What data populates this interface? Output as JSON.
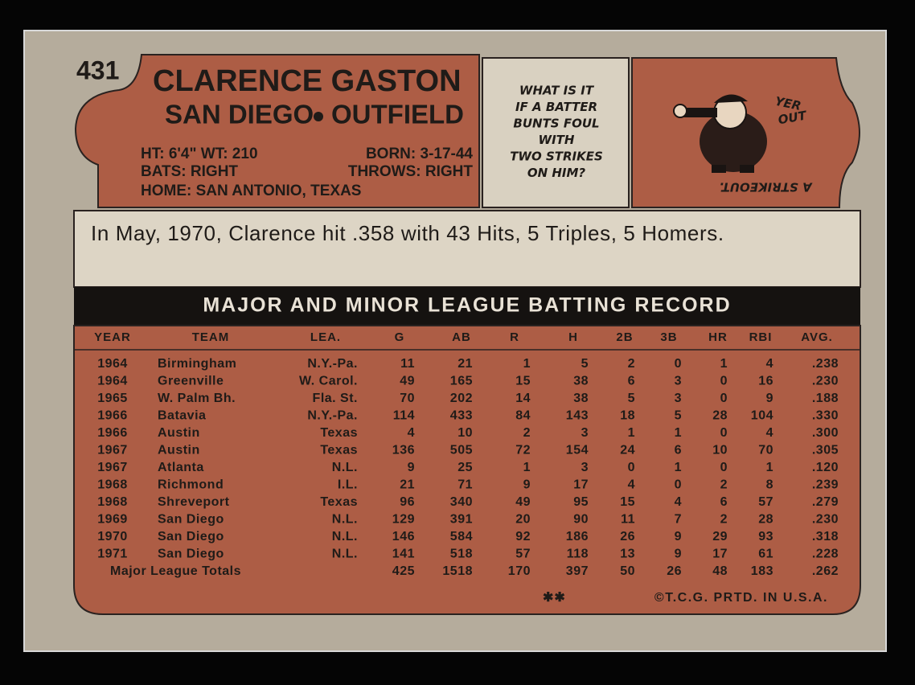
{
  "card_number": "431",
  "player": {
    "name": "CLARENCE GASTON",
    "team": "SAN DIEGO",
    "position": "OUTFIELD",
    "bio": {
      "height_weight": "HT: 6'4\" WT: 210",
      "born": "BORN: 3-17-44",
      "bats": "BATS: RIGHT",
      "throws": "THROWS: RIGHT",
      "home": "HOME: SAN ANTONIO, TEXAS"
    }
  },
  "quiz": {
    "question_lines": [
      "WHAT IS IT",
      "IF A BATTER",
      "BUNTS FOUL",
      "WITH",
      "TWO STRIKES",
      "ON HIM?"
    ],
    "cartoon_lines": [
      "YER",
      "OUT"
    ],
    "answer": "A STRIKEOUT."
  },
  "blurb": "In May, 1970, Clarence hit .358 with 43 Hits, 5 Triples, 5 Homers.",
  "table": {
    "title": "MAJOR AND MINOR LEAGUE BATTING RECORD",
    "headers": [
      "YEAR",
      "TEAM",
      "LEA.",
      "G",
      "AB",
      "R",
      "H",
      "2B",
      "3B",
      "HR",
      "RBI",
      "AVG."
    ],
    "rows": [
      [
        "1964",
        "Birmingham",
        "N.Y.-Pa.",
        "11",
        "21",
        "1",
        "5",
        "2",
        "0",
        "1",
        "4",
        ".238"
      ],
      [
        "1964",
        "Greenville",
        "W. Carol.",
        "49",
        "165",
        "15",
        "38",
        "6",
        "3",
        "0",
        "16",
        ".230"
      ],
      [
        "1965",
        "W. Palm Bh.",
        "Fla. St.",
        "70",
        "202",
        "14",
        "38",
        "5",
        "3",
        "0",
        "9",
        ".188"
      ],
      [
        "1966",
        "Batavia",
        "N.Y.-Pa.",
        "114",
        "433",
        "84",
        "143",
        "18",
        "5",
        "28",
        "104",
        ".330"
      ],
      [
        "1966",
        "Austin",
        "Texas",
        "4",
        "10",
        "2",
        "3",
        "1",
        "1",
        "0",
        "4",
        ".300"
      ],
      [
        "1967",
        "Austin",
        "Texas",
        "136",
        "505",
        "72",
        "154",
        "24",
        "6",
        "10",
        "70",
        ".305"
      ],
      [
        "1967",
        "Atlanta",
        "N.L.",
        "9",
        "25",
        "1",
        "3",
        "0",
        "1",
        "0",
        "1",
        ".120"
      ],
      [
        "1968",
        "Richmond",
        "I.L.",
        "21",
        "71",
        "9",
        "17",
        "4",
        "0",
        "2",
        "8",
        ".239"
      ],
      [
        "1968",
        "Shreveport",
        "Texas",
        "96",
        "340",
        "49",
        "95",
        "15",
        "4",
        "6",
        "57",
        ".279"
      ],
      [
        "1969",
        "San Diego",
        "N.L.",
        "129",
        "391",
        "20",
        "90",
        "11",
        "7",
        "2",
        "28",
        ".230"
      ],
      [
        "1970",
        "San Diego",
        "N.L.",
        "146",
        "584",
        "92",
        "186",
        "26",
        "9",
        "29",
        "93",
        ".318"
      ],
      [
        "1971",
        "San Diego",
        "N.L.",
        "141",
        "518",
        "57",
        "118",
        "13",
        "9",
        "17",
        "61",
        ".228"
      ]
    ],
    "totals": {
      "label": "Major League Totals",
      "values": [
        "425",
        "1518",
        "170",
        "397",
        "50",
        "26",
        "48",
        "183",
        ".262"
      ]
    }
  },
  "footer": {
    "stars": "✱✱",
    "copyright": "©T.C.G. PRTD. IN U.S.A."
  }
}
